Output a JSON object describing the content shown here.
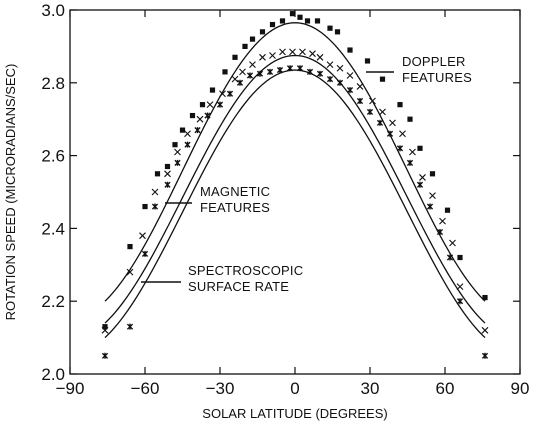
{
  "chart_data": {
    "type": "scatter",
    "title": "",
    "xlabel": "SOLAR LATITUDE (DEGREES)",
    "ylabel": "ROTATION SPEED (MICRORADIANS/SEC)",
    "xlim": [
      -90,
      90
    ],
    "ylim": [
      2.0,
      3.0
    ],
    "x_ticks": [
      "−90",
      "−60",
      "−30",
      "0",
      "30",
      "60",
      "90"
    ],
    "y_ticks": [
      "2.0",
      "2.2",
      "2.4",
      "2.6",
      "2.8",
      "3.0"
    ],
    "grid": false,
    "legend": "none",
    "annotations": [
      {
        "lines": [
          "DOPPLER",
          "FEATURES"
        ],
        "points_to": "doppler-curve"
      },
      {
        "lines": [
          "MAGNETIC",
          "FEATURES"
        ],
        "points_to": "magnetic-curve"
      },
      {
        "lines": [
          "SPECTROSCOPIC",
          "SURFACE RATE"
        ],
        "points_to": "spectroscopic-curve"
      }
    ],
    "series": [
      {
        "marker": "square",
        "fit_curve": {
          "equator": 2.965,
          "edge_at_76": 2.2
        },
        "points": [
          [
            -76,
            2.13
          ],
          [
            -66,
            2.35
          ],
          [
            -60,
            2.46
          ],
          [
            -55,
            2.55
          ],
          [
            -51,
            2.57
          ],
          [
            -48,
            2.63
          ],
          [
            -45,
            2.67
          ],
          [
            -41,
            2.71
          ],
          [
            -37,
            2.74
          ],
          [
            -33,
            2.78
          ],
          [
            -28,
            2.83
          ],
          [
            -24,
            2.87
          ],
          [
            -20,
            2.9
          ],
          [
            -17,
            2.92
          ],
          [
            -13,
            2.94
          ],
          [
            -9,
            2.96
          ],
          [
            -5,
            2.97
          ],
          [
            -1,
            2.99
          ],
          [
            2,
            2.98
          ],
          [
            5,
            2.97
          ],
          [
            9,
            2.97
          ],
          [
            14,
            2.95
          ],
          [
            17,
            2.94
          ],
          [
            22,
            2.89
          ],
          [
            29,
            2.86
          ],
          [
            35,
            2.81
          ],
          [
            42,
            2.74
          ],
          [
            46,
            2.7
          ],
          [
            50,
            2.62
          ],
          [
            55,
            2.55
          ],
          [
            61,
            2.45
          ],
          [
            66,
            2.32
          ],
          [
            76,
            2.21
          ]
        ]
      },
      {
        "marker": "x",
        "fit_curve": {
          "equator": 2.875,
          "edge_at_76": 2.14
        },
        "points": [
          [
            -76,
            2.12
          ],
          [
            -66,
            2.28
          ],
          [
            -61,
            2.38
          ],
          [
            -56,
            2.5
          ],
          [
            -51,
            2.55
          ],
          [
            -47,
            2.61
          ],
          [
            -43,
            2.66
          ],
          [
            -38,
            2.7
          ],
          [
            -34,
            2.74
          ],
          [
            -29,
            2.77
          ],
          [
            -24,
            2.81
          ],
          [
            -21,
            2.83
          ],
          [
            -17,
            2.85
          ],
          [
            -13,
            2.87
          ],
          [
            -9,
            2.875
          ],
          [
            -5,
            2.885
          ],
          [
            -1,
            2.885
          ],
          [
            3,
            2.885
          ],
          [
            7,
            2.88
          ],
          [
            10,
            2.87
          ],
          [
            14,
            2.85
          ],
          [
            18,
            2.84
          ],
          [
            22,
            2.82
          ],
          [
            26,
            2.79
          ],
          [
            31,
            2.75
          ],
          [
            35,
            2.72
          ],
          [
            39,
            2.69
          ],
          [
            43,
            2.66
          ],
          [
            47,
            2.61
          ],
          [
            51,
            2.54
          ],
          [
            55,
            2.49
          ],
          [
            59,
            2.42
          ],
          [
            63,
            2.36
          ],
          [
            66,
            2.24
          ],
          [
            76,
            2.12
          ]
        ]
      },
      {
        "marker": "asterisk",
        "fit_curve": {
          "equator": 2.835,
          "edge_at_76": 2.1
        },
        "points": [
          [
            -76,
            2.05
          ],
          [
            -66,
            2.13
          ],
          [
            -60,
            2.33
          ],
          [
            -56,
            2.46
          ],
          [
            -51,
            2.52
          ],
          [
            -47,
            2.58
          ],
          [
            -43,
            2.63
          ],
          [
            -39,
            2.67
          ],
          [
            -35,
            2.71
          ],
          [
            -30,
            2.74
          ],
          [
            -26,
            2.77
          ],
          [
            -22,
            2.8
          ],
          [
            -18,
            2.82
          ],
          [
            -14,
            2.825
          ],
          [
            -10,
            2.83
          ],
          [
            -6,
            2.835
          ],
          [
            -2,
            2.84
          ],
          [
            2,
            2.84
          ],
          [
            6,
            2.83
          ],
          [
            10,
            2.825
          ],
          [
            14,
            2.81
          ],
          [
            18,
            2.8
          ],
          [
            22,
            2.78
          ],
          [
            26,
            2.75
          ],
          [
            30,
            2.72
          ],
          [
            34,
            2.69
          ],
          [
            38,
            2.66
          ],
          [
            42,
            2.62
          ],
          [
            46,
            2.58
          ],
          [
            50,
            2.52
          ],
          [
            54,
            2.46
          ],
          [
            58,
            2.39
          ],
          [
            62,
            2.32
          ],
          [
            66,
            2.2
          ],
          [
            76,
            2.05
          ]
        ]
      }
    ]
  }
}
